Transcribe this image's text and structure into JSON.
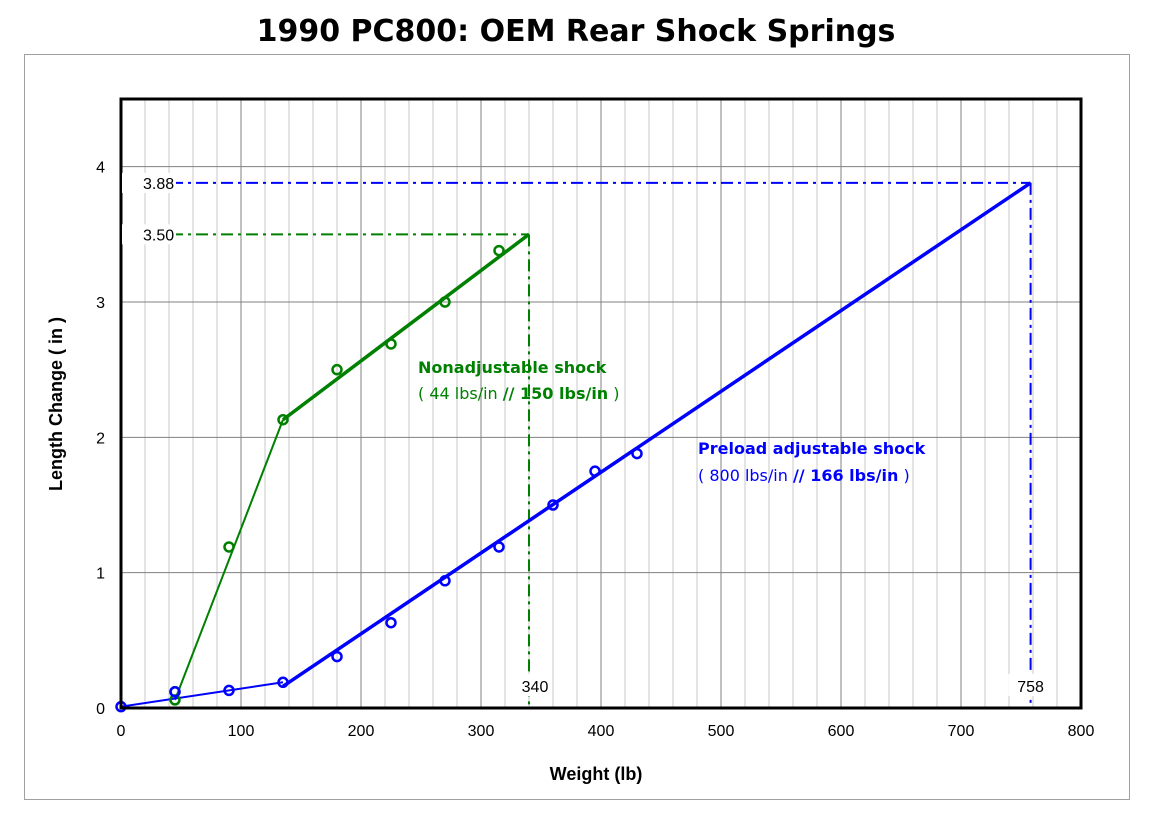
{
  "chart_data": {
    "type": "line",
    "title": "1990 PC800:  OEM Rear Shock Springs",
    "xlabel": "Weight (lb)",
    "ylabel": "Length Change  ( in )",
    "xlim": [
      0,
      800
    ],
    "ylim": [
      0,
      4.5
    ],
    "x_ticks": [
      "0",
      "100",
      "200",
      "300",
      "400",
      "500",
      "600",
      "700",
      "800"
    ],
    "y_ticks": [
      "0",
      "1",
      "2",
      "3",
      "4"
    ],
    "grid": true,
    "series": [
      {
        "color": "#008000",
        "points": [
          [
            45,
            0.06
          ],
          [
            45,
            0.12
          ],
          [
            90,
            1.19
          ],
          [
            135,
            2.13
          ],
          [
            180,
            2.5
          ],
          [
            225,
            2.69
          ],
          [
            270,
            3.0
          ],
          [
            315,
            3.38
          ]
        ],
        "fit_segments": [
          [
            [
              45,
              0.06
            ],
            [
              135,
              2.13
            ]
          ],
          [
            [
              135,
              2.13
            ],
            [
              340,
              3.5
            ]
          ]
        ]
      },
      {
        "color": "#0000ff",
        "points": [
          [
            0,
            0.01
          ],
          [
            45,
            0.12
          ],
          [
            90,
            0.13
          ],
          [
            135,
            0.19
          ],
          [
            180,
            0.38
          ],
          [
            225,
            0.63
          ],
          [
            270,
            0.94
          ],
          [
            315,
            1.19
          ],
          [
            360,
            1.5
          ],
          [
            395,
            1.75
          ],
          [
            430,
            1.88
          ]
        ],
        "fit_segments": [
          [
            [
              0,
              0.01
            ],
            [
              135,
              0.19
            ]
          ],
          [
            [
              135,
              0.16
            ],
            [
              758,
              3.88
            ]
          ]
        ]
      }
    ],
    "reference_lines": [
      {
        "color": "#008000",
        "x": 340,
        "y": 3.5,
        "x_label": "340",
        "y_label": "3.50"
      },
      {
        "color": "#0000ff",
        "x": 758,
        "y": 3.88,
        "x_label": "758",
        "y_label": "3.88"
      }
    ],
    "annotations": [
      {
        "color": "#008000",
        "title": "Nonadjustable shock",
        "rates_open": "( 44 lbs/in ",
        "rates_sep": "// 150 lbs/in",
        "rates_close": " )"
      },
      {
        "color": "#0000ff",
        "title": "Preload adjustable shock",
        "rates_open": "( 800 lbs/in ",
        "rates_sep": "// 166 lbs/in",
        "rates_close": " )"
      }
    ]
  }
}
